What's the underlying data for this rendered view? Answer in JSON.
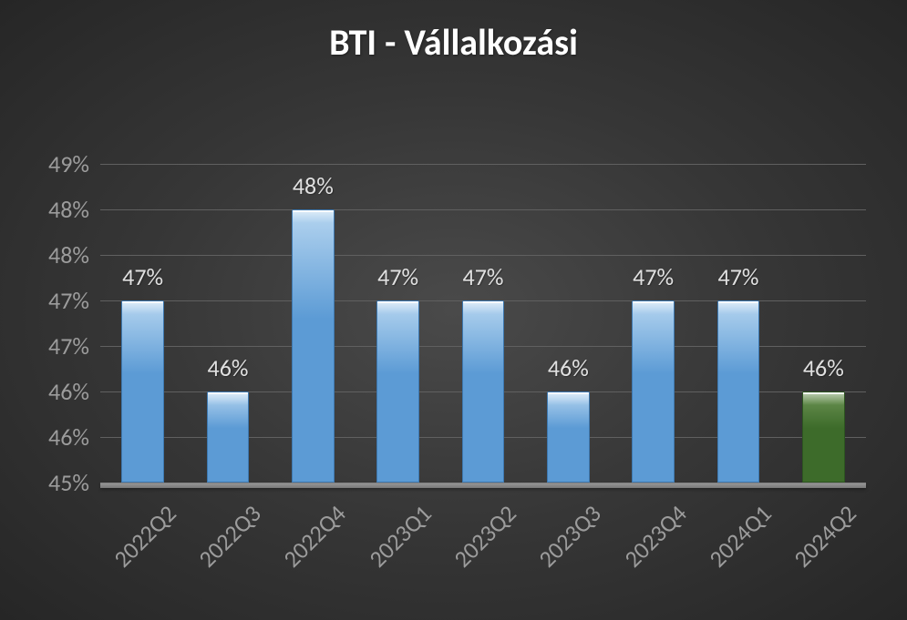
{
  "chart": {
    "type": "bar",
    "title": "BTI - Vállalkozási",
    "title_fontsize": 40,
    "title_color": "#ffffff",
    "background": {
      "center_color": "#4a4a4a",
      "edge_color": "#262626"
    },
    "y_axis": {
      "min": 45,
      "max": 49,
      "tick_step": 0.5,
      "tick_labels": [
        "45%",
        "46%",
        "46%",
        "47%",
        "47%",
        "48%",
        "48%",
        "49%"
      ],
      "label_fontsize": 26,
      "label_color": "#9c9c9c",
      "grid_color": "#606060"
    },
    "x_axis": {
      "line_color": "#808080",
      "label_fontsize": 26,
      "label_color": "#9c9c9c",
      "label_rotation_deg": -45
    },
    "floor_color_top": "#9a9a9a",
    "floor_color_bottom": "#7a7a7a",
    "data_label_fontsize": 26,
    "data_label_color": "#e0e0e0",
    "bar_width_ratio": 0.5,
    "default_bar_colors": {
      "top": "#b5d5f0",
      "bottom": "#5c9bd5",
      "border": "#3d78b0"
    },
    "highlight_bar_colors": {
      "top": "#6d9455",
      "bottom": "#3d6b2a",
      "border": "#2d5520"
    },
    "categories": [
      "2022Q2",
      "2022Q3",
      "2022Q4",
      "2023Q1",
      "2023Q2",
      "2023Q3",
      "2023Q4",
      "2024Q1",
      "2024Q2"
    ],
    "values": [
      47,
      46,
      48,
      47,
      47,
      46,
      47,
      47,
      46
    ],
    "value_labels": [
      "47%",
      "46%",
      "48%",
      "47%",
      "47%",
      "46%",
      "47%",
      "47%",
      "46%"
    ],
    "highlight_index": 8
  }
}
